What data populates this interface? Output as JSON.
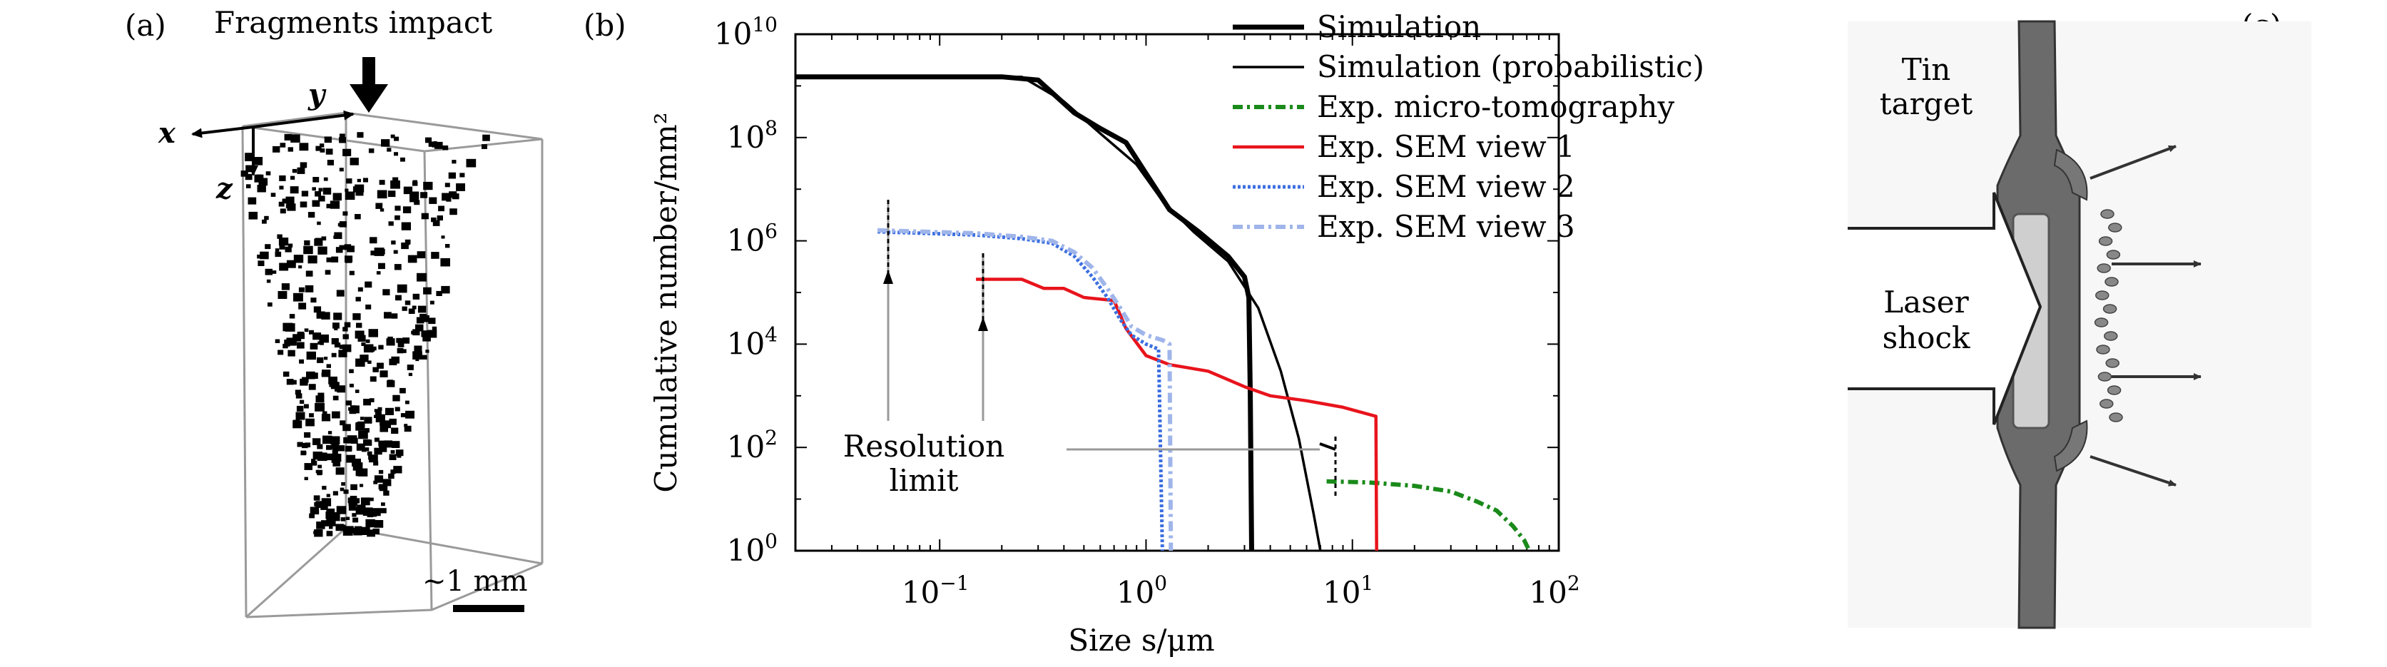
{
  "panel_a": {
    "label": "(a)",
    "title": "Fragments impact",
    "axis_x": "x",
    "axis_y": "y",
    "axis_z": "z",
    "scale_label": "~1 mm"
  },
  "panel_c": {
    "label": "(c)",
    "target_line1": "Tin",
    "target_line2": "target",
    "laser_line1": "Laser",
    "laser_line2": "shock"
  },
  "chart_data": {
    "panel_label": "(b)",
    "type": "line",
    "xscale": "log",
    "yscale": "log",
    "xlim": [
      0.02,
      100
    ],
    "ylim": [
      1,
      10000000000
    ],
    "xlabel": "Size s/μm",
    "ylabel": "Cumulative number/mm²",
    "x_ticks": [
      {
        "v": 0.1,
        "base": "10",
        "exp": "−1"
      },
      {
        "v": 1,
        "base": "10",
        "exp": "0"
      },
      {
        "v": 10,
        "base": "10",
        "exp": "1"
      },
      {
        "v": 100,
        "base": "10",
        "exp": "2"
      }
    ],
    "y_ticks": [
      {
        "v": 1,
        "base": "10",
        "exp": "0"
      },
      {
        "v": 100,
        "base": "10",
        "exp": "2"
      },
      {
        "v": 10000,
        "base": "10",
        "exp": "4"
      },
      {
        "v": 1000000,
        "base": "10",
        "exp": "6"
      },
      {
        "v": 100000000,
        "base": "10",
        "exp": "8"
      },
      {
        "v": 10000000000,
        "base": "10",
        "exp": "10"
      }
    ],
    "legend_position": "top-right",
    "annotation": {
      "line1": "Resolution",
      "line2": "limit"
    },
    "series": [
      {
        "name": "Simulation",
        "color": "#000000",
        "style": "thick",
        "x": [
          0.02,
          0.2,
          0.3,
          0.45,
          0.6,
          0.8,
          1.0,
          1.3,
          1.8,
          2.5,
          3.0,
          3.15,
          3.2,
          3.25
        ],
        "y": [
          1500000000.0,
          1500000000.0,
          1300000000.0,
          300000000.0,
          150000000.0,
          80000000.0,
          20000000.0,
          4000000.0,
          1500000.0,
          500000.0,
          200000.0,
          80000.0,
          1000.0,
          1
        ]
      },
      {
        "name": "Simulation (probabilistic)",
        "color": "#000000",
        "style": "thin",
        "x": [
          0.02,
          0.25,
          0.4,
          0.6,
          0.9,
          1.2,
          1.7,
          2.5,
          3.5,
          4.5,
          5.5,
          6.5,
          7.0
        ],
        "y": [
          1500000000.0,
          1500000000.0,
          500000000.0,
          120000000.0,
          30000000.0,
          6000000.0,
          1500000.0,
          400000.0,
          50000.0,
          3000.0,
          150,
          5,
          1
        ]
      },
      {
        "name": "Exp. micro-tomography",
        "color": "#1a8a1a",
        "style": "dashdot",
        "x": [
          7.5,
          12,
          20,
          30,
          40,
          50,
          60,
          68,
          72
        ],
        "y": [
          22,
          21,
          18,
          14,
          9,
          6,
          3,
          1.6,
          1
        ]
      },
      {
        "name": "Exp. SEM view 1",
        "color": "#e8141c",
        "style": "solid",
        "x": [
          0.15,
          0.25,
          0.32,
          0.4,
          0.5,
          0.7,
          0.8,
          1.0,
          1.3,
          2.0,
          3.0,
          4.0,
          6.0,
          9.0,
          13.0,
          13.1
        ],
        "y": [
          180000.0,
          180000.0,
          120000.0,
          120000.0,
          80000.0,
          70000.0,
          20000.0,
          6000.0,
          4000.0,
          3000.0,
          1500.0,
          1000.0,
          800,
          600,
          400,
          1
        ]
      },
      {
        "name": "Exp. SEM view 2",
        "color": "#3c6fe0",
        "style": "dotted",
        "x": [
          0.05,
          0.15,
          0.25,
          0.35,
          0.45,
          0.55,
          0.65,
          0.75,
          0.85,
          1.0,
          1.15,
          1.2
        ],
        "y": [
          1500000.0,
          1300000.0,
          1100000.0,
          900000.0,
          500000.0,
          200000.0,
          80000.0,
          30000.0,
          15000.0,
          10000.0,
          8000.0,
          1
        ]
      },
      {
        "name": "Exp. SEM view 3",
        "color": "#9fb5ea",
        "style": "dashdot",
        "x": [
          0.05,
          0.15,
          0.25,
          0.35,
          0.45,
          0.55,
          0.65,
          0.75,
          0.85,
          1.0,
          1.2,
          1.3,
          1.32
        ],
        "y": [
          1600000.0,
          1400000.0,
          1200000.0,
          1000000.0,
          600000.0,
          300000.0,
          120000.0,
          50000.0,
          22000.0,
          15000.0,
          12000.0,
          10000.0,
          1
        ]
      }
    ]
  }
}
